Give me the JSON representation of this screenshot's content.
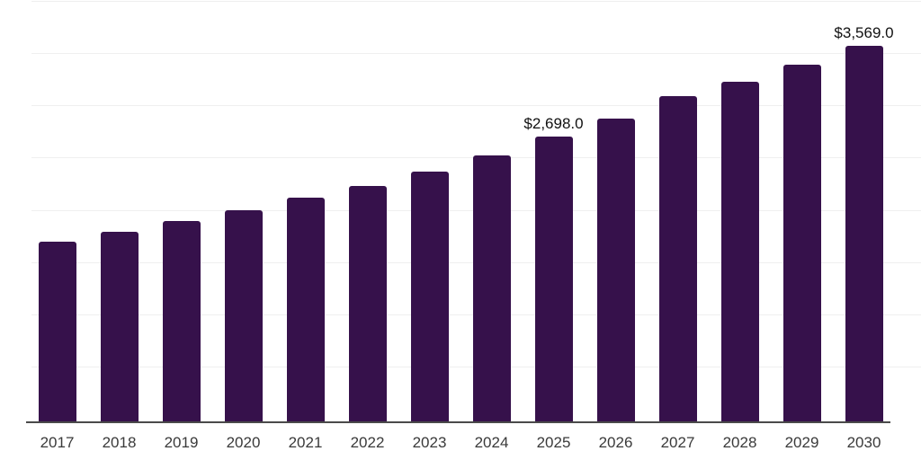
{
  "chart_data": {
    "type": "bar",
    "title": "",
    "xlabel": "",
    "ylabel": "",
    "categories": [
      "2017",
      "2018",
      "2019",
      "2020",
      "2021",
      "2022",
      "2023",
      "2024",
      "2025",
      "2026",
      "2027",
      "2028",
      "2029",
      "2030"
    ],
    "values": [
      1695,
      1790,
      1895,
      1995,
      2115,
      2230,
      2365,
      2520,
      2698,
      2870,
      3090,
      3225,
      3390,
      3569
    ],
    "data_labels": [
      null,
      null,
      null,
      null,
      null,
      null,
      null,
      null,
      "$2,698.0",
      null,
      null,
      null,
      null,
      "$3,569.0"
    ],
    "ylim": [
      0,
      4000
    ],
    "gridline_step": 500,
    "grid": "horizontal-only",
    "legend_position": "none",
    "y_tick_labels_visible": false,
    "colors": {
      "bar": "#36114b",
      "axis_line": "#4a4a4a",
      "gridline": "#efefef",
      "x_tick_label": "#3a3a3a",
      "data_label": "#111111",
      "background": "#ffffff"
    }
  }
}
